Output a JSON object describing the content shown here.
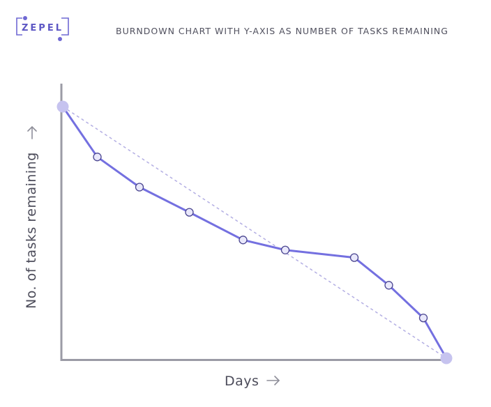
{
  "brand": {
    "name": "ZEPEL",
    "accent": "#6f68d3"
  },
  "title": "BURNDOWN CHART WITH Y-AXIS AS NUMBER OF TASKS REMAINING",
  "colors": {
    "actual_line": "#7470e0",
    "ideal_line": "#b3aee3",
    "point_fill": "#e9e8fb",
    "endpoint_fill": "#c6c3ef",
    "axis": "#9b9ba6",
    "text": "#50505e"
  },
  "chart_data": {
    "type": "line",
    "xlabel": "Days",
    "ylabel": "No. of tasks remaining",
    "xlim": [
      0,
      100
    ],
    "ylim": [
      0,
      100
    ],
    "grid": false,
    "legend": "none",
    "axis_arrows": true,
    "tick_labels": false,
    "series": [
      {
        "values_x": [
          0,
          9,
          20,
          33,
          47,
          58,
          76,
          85,
          94,
          100
        ],
        "values_y": [
          100,
          80,
          68,
          58,
          47,
          43,
          40,
          29,
          16,
          0
        ],
        "style": "solid"
      },
      {
        "values_x": [
          0,
          100
        ],
        "values_y": [
          100,
          0
        ],
        "style": "dotted"
      }
    ]
  }
}
